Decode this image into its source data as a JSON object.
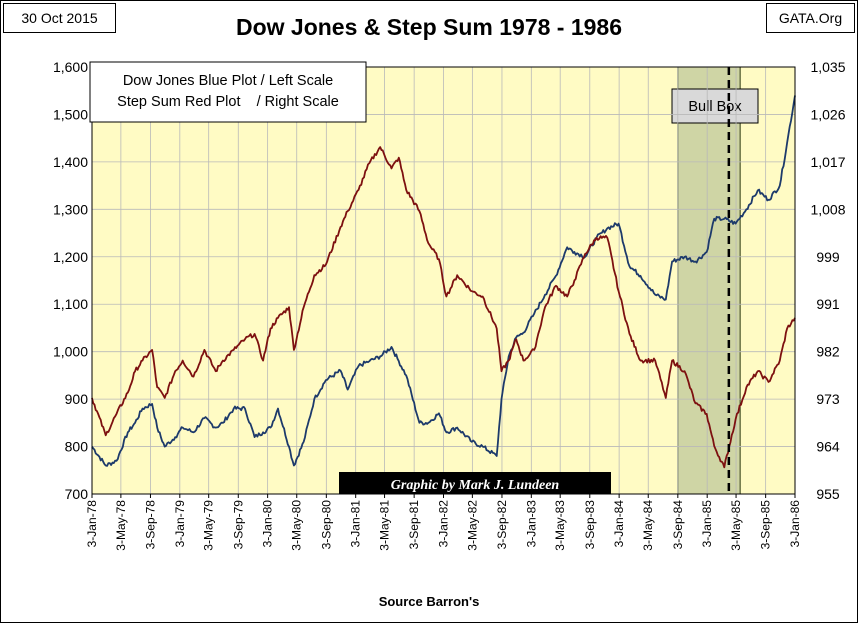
{
  "header": {
    "date": "30 Oct 2015",
    "site": "GATA.Org"
  },
  "chart_data": {
    "type": "line",
    "title": "Dow Jones & Step Sum 1978 - 1986",
    "legend": {
      "line1": "Dow Jones Blue Plot / Left Scale",
      "line2": "Step Sum Red Plot    / Right Scale",
      "placement": "top-left"
    },
    "left_axis": {
      "min": 700,
      "max": 1600,
      "ticks": [
        "700",
        "800",
        "900",
        "1,000",
        "1,100",
        "1,200",
        "1,300",
        "1,400",
        "1,500",
        "1,600"
      ]
    },
    "right_axis": {
      "min": 955,
      "max": 1035,
      "ticks": [
        "955",
        "964",
        "973",
        "982",
        "991",
        "999",
        "1,008",
        "1,017",
        "1,026",
        "1,035"
      ]
    },
    "x_ticks": [
      "3-Jan-78",
      "3-May-78",
      "3-Sep-78",
      "3-Jan-79",
      "3-May-79",
      "3-Sep-79",
      "3-Jan-80",
      "3-May-80",
      "3-Sep-80",
      "3-Jan-81",
      "3-May-81",
      "3-Sep-81",
      "3-Jan-82",
      "3-May-82",
      "3-Sep-82",
      "3-Jan-83",
      "3-May-83",
      "3-Sep-83",
      "3-Jan-84",
      "3-May-84",
      "3-Sep-84",
      "3-Jan-85",
      "3-May-85",
      "3-Sep-85",
      "3-Jan-86"
    ],
    "grid": true,
    "plot_background": "#fffbc4",
    "annotations": {
      "bull_box": {
        "label": "Bull Box",
        "start": "3-Sep-84",
        "end": "20-May-85",
        "fill": "#cfd5a5"
      },
      "dashed_marker": "3-Apr-85",
      "credit": "Graphic by Mark J. Lundeen"
    },
    "series": [
      {
        "color": "#1d3a6b",
        "axis": "left",
        "x": [
          "3-Jan-78",
          "1-Mar-78",
          "15-Apr-78",
          "1-Jun-78",
          "1-Jul-78",
          "1-Aug-78",
          "10-Sep-78",
          "1-Oct-78",
          "1-Nov-78",
          "15-Dec-78",
          "15-Jan-79",
          "1-Mar-79",
          "15-Apr-79",
          "1-Jun-79",
          "1-Jul-79",
          "15-Aug-79",
          "1-Oct-79",
          "10-Nov-79",
          "15-Dec-79",
          "15-Jan-80",
          "15-Feb-80",
          "1-Apr-80",
          "21-Apr-80",
          "1-Jun-80",
          "15-Jul-80",
          "1-Sep-80",
          "1-Nov-80",
          "1-Dec-80",
          "15-Jan-81",
          "1-Mar-81",
          "15-Apr-81",
          "1-Jun-81",
          "1-Jul-81",
          "1-Aug-81",
          "25-Sep-81",
          "1-Nov-81",
          "15-Dec-81",
          "15-Jan-82",
          "1-Mar-82",
          "1-May-82",
          "15-Jun-82",
          "12-Aug-82",
          "1-Sep-82",
          "1-Oct-82",
          "1-Nov-82",
          "1-Dec-82",
          "15-Jan-83",
          "1-Mar-83",
          "15-Apr-83",
          "1-Jun-83",
          "1-Jul-83",
          "15-Aug-83",
          "1-Oct-83",
          "15-Nov-83",
          "1-Jan-84",
          "15-Feb-84",
          "1-Apr-84",
          "1-Jun-84",
          "15-Jul-84",
          "10-Aug-84",
          "1-Oct-84",
          "15-Nov-84",
          "1-Jan-85",
          "1-Feb-85",
          "15-Mar-85",
          "1-May-85",
          "15-Jun-85",
          "1-Aug-85",
          "15-Sep-85",
          "1-Nov-85",
          "1-Dec-85",
          "3-Jan-86"
        ],
        "values": [
          800,
          760,
          770,
          830,
          850,
          880,
          890,
          840,
          800,
          820,
          840,
          830,
          860,
          840,
          850,
          880,
          880,
          820,
          830,
          840,
          880,
          800,
          760,
          810,
          900,
          940,
          960,
          920,
          970,
          980,
          990,
          1010,
          980,
          950,
          850,
          850,
          870,
          830,
          840,
          810,
          800,
          780,
          900,
          990,
          1030,
          1040,
          1080,
          1120,
          1160,
          1220,
          1210,
          1200,
          1240,
          1260,
          1270,
          1180,
          1160,
          1120,
          1110,
          1190,
          1200,
          1190,
          1210,
          1280,
          1280,
          1270,
          1300,
          1340,
          1320,
          1350,
          1440,
          1540
        ]
      },
      {
        "color": "#7d1010",
        "axis": "right",
        "x": [
          "3-Jan-78",
          "1-Mar-78",
          "15-Apr-78",
          "1-Jun-78",
          "1-Jul-78",
          "1-Aug-78",
          "10-Sep-78",
          "1-Oct-78",
          "1-Nov-78",
          "15-Dec-78",
          "15-Jan-79",
          "1-Mar-79",
          "15-Apr-79",
          "1-Jun-79",
          "1-Jul-79",
          "15-Aug-79",
          "1-Oct-79",
          "10-Nov-79",
          "15-Dec-79",
          "15-Jan-80",
          "15-Feb-80",
          "1-Apr-80",
          "21-Apr-80",
          "1-Jun-80",
          "15-Jul-80",
          "1-Sep-80",
          "1-Nov-80",
          "1-Dec-80",
          "15-Jan-81",
          "1-Mar-81",
          "15-Apr-81",
          "1-Jun-81",
          "1-Jul-81",
          "1-Aug-81",
          "25-Sep-81",
          "1-Nov-81",
          "15-Dec-81",
          "15-Jan-82",
          "1-Mar-82",
          "1-May-82",
          "15-Jun-82",
          "12-Aug-82",
          "1-Sep-82",
          "1-Oct-82",
          "1-Nov-82",
          "1-Dec-82",
          "15-Jan-83",
          "1-Mar-83",
          "15-Apr-83",
          "1-Jun-83",
          "1-Jul-83",
          "15-Aug-83",
          "1-Oct-83",
          "15-Nov-83",
          "1-Jan-84",
          "15-Feb-84",
          "1-Apr-84",
          "1-Jun-84",
          "15-Jul-84",
          "10-Aug-84",
          "1-Oct-84",
          "15-Nov-84",
          "1-Jan-85",
          "1-Feb-85",
          "15-Mar-85",
          "1-May-85",
          "15-Jun-85",
          "1-Aug-85",
          "15-Sep-85",
          "1-Nov-85",
          "1-Dec-85",
          "3-Jan-86"
        ],
        "values": [
          973,
          966,
          970,
          974,
          978,
          980,
          982,
          975,
          973,
          978,
          980,
          977,
          982,
          978,
          980,
          982,
          984,
          985,
          980,
          986,
          988,
          990,
          982,
          990,
          996,
          998,
          1005,
          1008,
          1012,
          1017,
          1020,
          1016,
          1018,
          1012,
          1008,
          1002,
          999,
          992,
          996,
          993,
          992,
          986,
          978,
          980,
          984,
          980,
          982,
          990,
          994,
          992,
          995,
          1000,
          1003,
          1003,
          993,
          985,
          980,
          980,
          973,
          980,
          978,
          972,
          970,
          964,
          960,
          969,
          975,
          978,
          976,
          980,
          986,
          988
        ]
      }
    ]
  }
}
